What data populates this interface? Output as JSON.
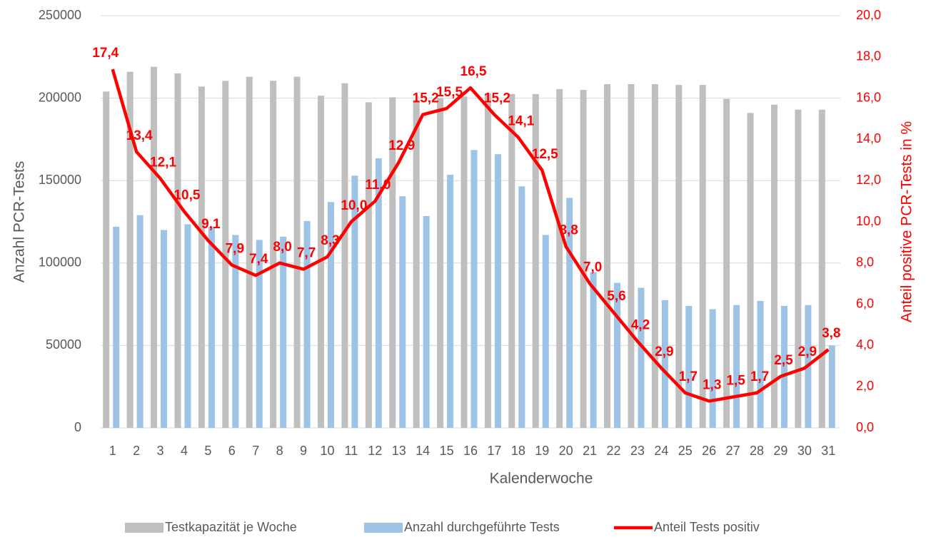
{
  "chart_data": {
    "type": "bar-line",
    "x_label": "Kalenderwoche",
    "y_label": "Anzahl PCR-Tests",
    "y2_label": "Anteil positive PCR-Tests in %",
    "categories": [
      "1",
      "2",
      "3",
      "4",
      "5",
      "6",
      "7",
      "8",
      "9",
      "10",
      "11",
      "12",
      "13",
      "14",
      "15",
      "16",
      "17",
      "18",
      "19",
      "20",
      "21",
      "22",
      "23",
      "24",
      "25",
      "26",
      "27",
      "28",
      "29",
      "30",
      "31"
    ],
    "series": [
      {
        "name": "Testkapazität je Woche",
        "kind": "bar",
        "color": "#bfbfbf",
        "values": [
          204000,
          216000,
          219000,
          215000,
          207000,
          210500,
          213000,
          210500,
          213000,
          201500,
          209000,
          197500,
          200500,
          199000,
          200000,
          201000,
          203000,
          202500,
          202500,
          205500,
          205000,
          208500,
          208500,
          208500,
          208000,
          208000,
          199500,
          191000,
          196000,
          193000,
          193000
        ]
      },
      {
        "name": "Anzahl durchgeführte Tests",
        "kind": "bar",
        "color": "#9dc3e6",
        "values": [
          122000,
          129000,
          120000,
          123500,
          122000,
          117000,
          114000,
          116000,
          125500,
          137000,
          153000,
          163500,
          140500,
          128500,
          153500,
          168500,
          166000,
          146500,
          117000,
          139500,
          94500,
          88000,
          85000,
          77500,
          74000,
          72000,
          74500,
          77000,
          74000,
          74500,
          50000
        ]
      },
      {
        "name": "Anteil Tests positiv",
        "kind": "line",
        "axis": "y2",
        "color": "#ff0000",
        "values": [
          17.4,
          13.4,
          12.1,
          10.5,
          9.1,
          7.9,
          7.4,
          8.0,
          7.7,
          8.3,
          10.0,
          11.0,
          12.9,
          15.2,
          15.5,
          16.5,
          15.2,
          14.1,
          12.5,
          8.8,
          7.0,
          5.6,
          4.2,
          2.9,
          1.7,
          1.3,
          1.5,
          1.7,
          2.5,
          2.9,
          3.8
        ],
        "value_labels": [
          "17,4",
          "13,4",
          "12,1",
          "10,5",
          "9,1",
          "7,9",
          "7,4",
          "8,0",
          "7,7",
          "8,3",
          "10,0",
          "11,0",
          "12,9",
          "15,2",
          "15,5",
          "16,5",
          "15,2",
          "14,1",
          "12,5",
          "8,8",
          "7,0",
          "5,6",
          "4,2",
          "2,9",
          "1,7",
          "1,3",
          "1,5",
          "1,7",
          "2,5",
          "2,9",
          "3,8"
        ]
      }
    ],
    "ylim": [
      0,
      250000
    ],
    "yticks": [
      0,
      50000,
      100000,
      150000,
      200000,
      250000
    ],
    "y2lim": [
      0,
      20
    ],
    "y2ticks": [
      {
        "value": 0,
        "label": "0,0"
      },
      {
        "value": 2,
        "label": "2,0"
      },
      {
        "value": 4,
        "label": "4,0"
      },
      {
        "value": 6,
        "label": "6,0"
      },
      {
        "value": 8,
        "label": "8,0"
      },
      {
        "value": 10,
        "label": "10,0"
      },
      {
        "value": 12,
        "label": "12,0"
      },
      {
        "value": 14,
        "label": "14,0"
      },
      {
        "value": 16,
        "label": "16,0"
      },
      {
        "value": 18,
        "label": "18,0"
      },
      {
        "value": 20,
        "label": "20,0"
      }
    ],
    "grid": true,
    "legend": "bottom"
  }
}
